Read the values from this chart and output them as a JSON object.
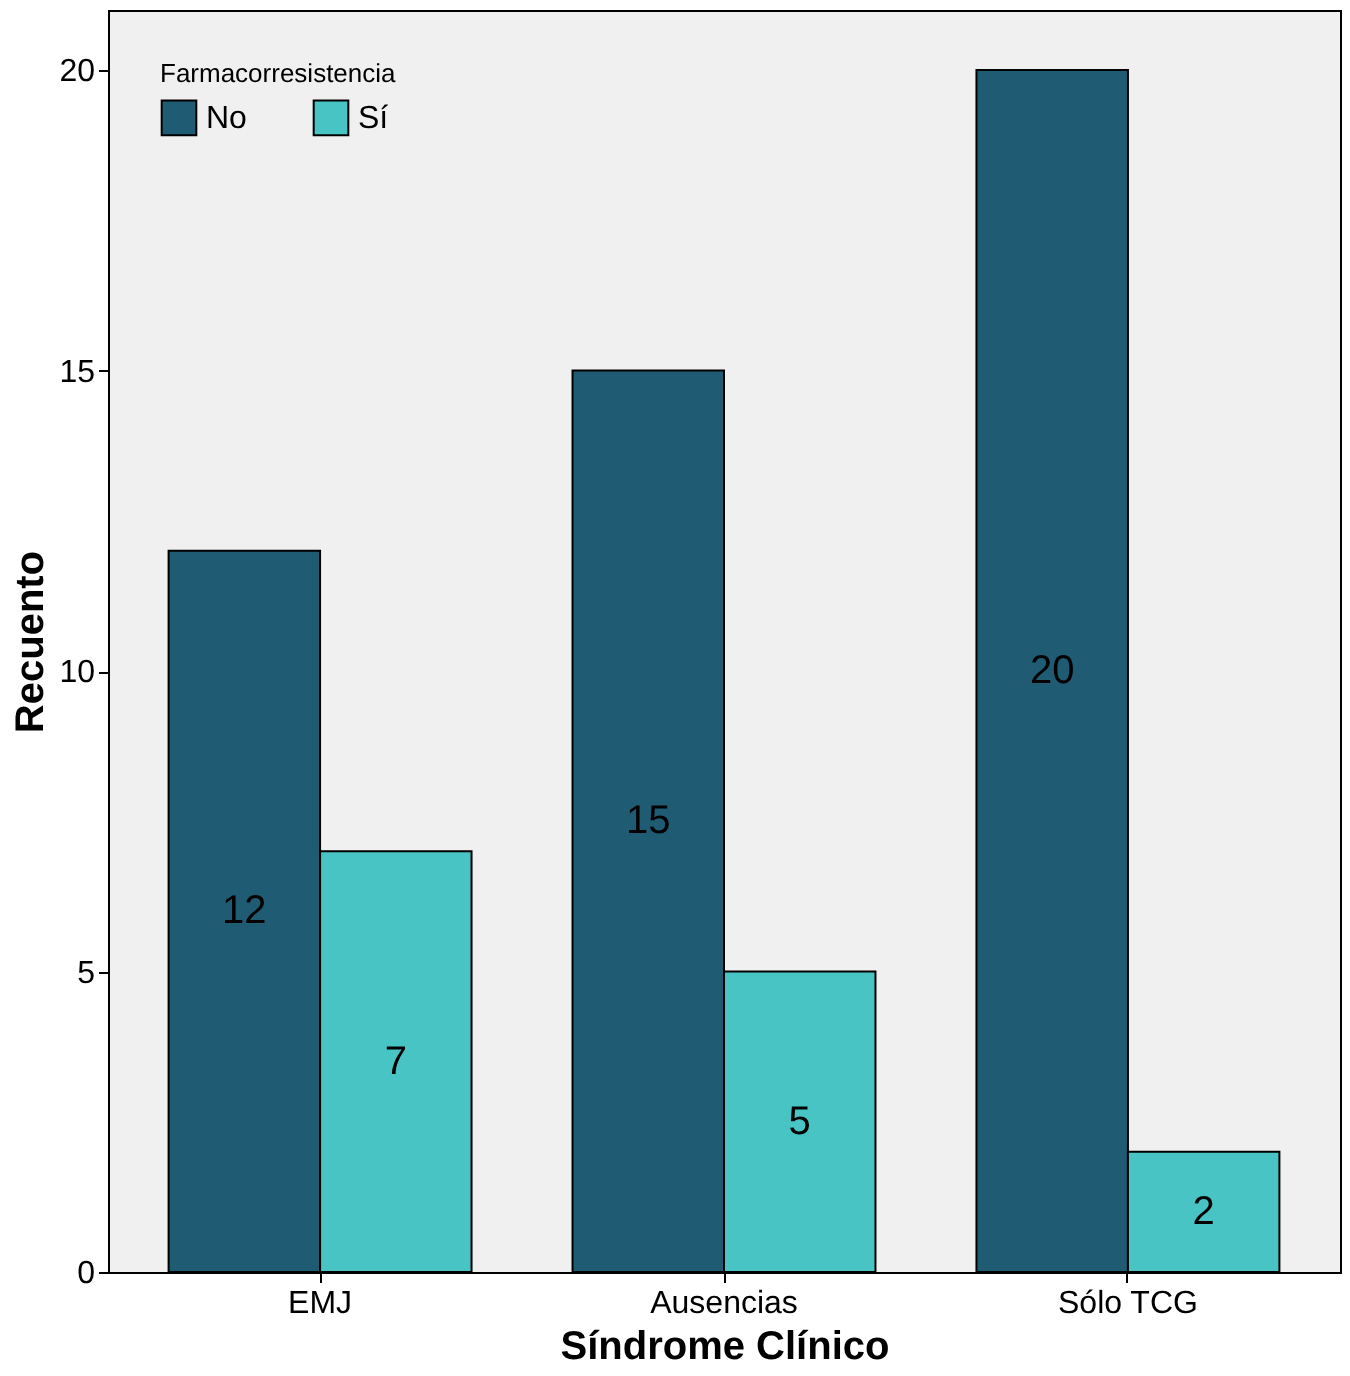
{
  "chart_data": {
    "type": "bar",
    "xlabel": "Síndrome Clínico",
    "ylabel": "Recuento",
    "legend_title": "Farmacorresistencia",
    "categories": [
      "EMJ",
      "Ausencias",
      "Sólo TCG"
    ],
    "series": [
      {
        "name": "No",
        "color": "#1f5b73",
        "values": [
          12,
          15,
          20
        ]
      },
      {
        "name": "Sí",
        "color": "#48c4c4",
        "values": [
          7,
          5,
          2
        ]
      }
    ],
    "ylim": [
      0,
      21
    ],
    "yticks": [
      0,
      5,
      10,
      15,
      20
    ],
    "grid": false,
    "legend": "top left",
    "data_labels": true
  }
}
